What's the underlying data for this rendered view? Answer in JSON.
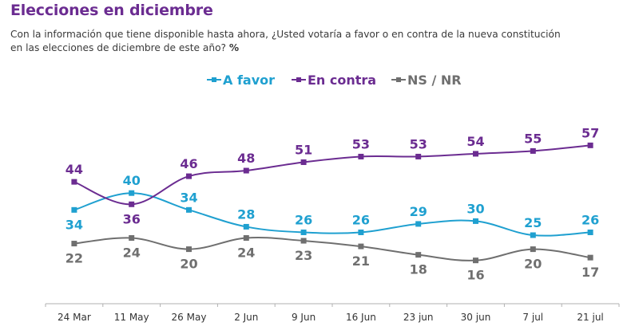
{
  "header": {
    "title": "Elecciones en diciembre",
    "subtitle_line1": "Con la información que tiene disponible hasta ahora, ¿Usted votaría a favor o en contra de la nueva constitución",
    "subtitle_line2": "en las elecciones de diciembre de este año?",
    "unit": "%"
  },
  "chart_data": {
    "type": "line",
    "title": "Elecciones en diciembre",
    "xlabel": "",
    "ylabel": "%",
    "categories": [
      "24 Mar",
      "11 May",
      "26 May",
      "2 Jun",
      "9 Jun",
      "16 Jun",
      "23 jun",
      "30 jun",
      "7 jul",
      "21 jul"
    ],
    "series": [
      {
        "name": "A favor",
        "color": "#1fa0d0",
        "values": [
          34,
          40,
          34,
          28,
          26,
          26,
          29,
          30,
          25,
          26
        ],
        "label_pos": [
          "below",
          "above",
          "above",
          "above",
          "above",
          "above",
          "above",
          "above",
          "above",
          "above"
        ]
      },
      {
        "name": "En contra",
        "color": "#6b2c91",
        "values": [
          44,
          36,
          46,
          48,
          51,
          53,
          53,
          54,
          55,
          57
        ],
        "label_pos": [
          "above",
          "below",
          "above",
          "above",
          "above",
          "above",
          "above",
          "above",
          "above",
          "above"
        ]
      },
      {
        "name": "NS / NR",
        "color": "#6f6f6f",
        "values": [
          22,
          24,
          20,
          24,
          23,
          21,
          18,
          16,
          20,
          17
        ],
        "label_pos": [
          "below",
          "below",
          "below",
          "below",
          "below",
          "below",
          "below",
          "below",
          "below",
          "below"
        ]
      }
    ],
    "legend_position": "top-center",
    "grid": false,
    "axis_color": "#b0b0b0",
    "tick_label_color": "#333333"
  }
}
